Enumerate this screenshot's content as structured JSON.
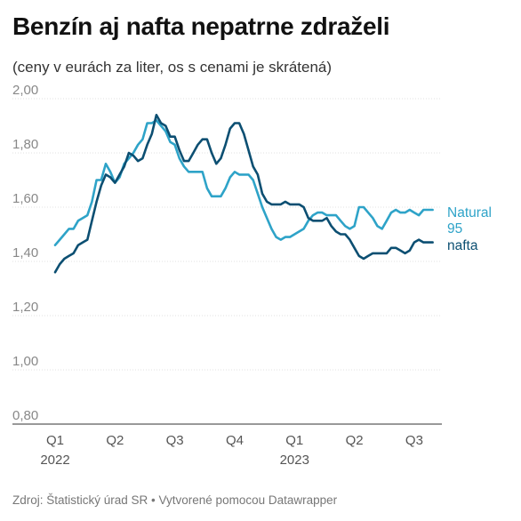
{
  "title": "Benzín aj nafta nepatrne zdraželi",
  "subtitle": "(ceny v eurách za liter, os s cenami je skrátená)",
  "footer": "Zdroj: Štatistický úrad SR • Vytvorené pomocou Datawrapper",
  "colors": {
    "natural95": "#2ea3c8",
    "nafta": "#0c4f72",
    "grid": "#e2e2e2"
  },
  "chart_data": {
    "type": "line",
    "title": "Benzín aj nafta nepatrne zdraželi",
    "subtitle": "(ceny v eurách za liter, os s cenami je skrátená)",
    "ylim": [
      0.8,
      2.0
    ],
    "y_ticks": [
      "2,00",
      "1,80",
      "1,60",
      "1,40",
      "1,20",
      "1,00",
      "0,80"
    ],
    "y_tick_values": [
      2.0,
      1.8,
      1.6,
      1.4,
      1.2,
      1.0,
      0.8
    ],
    "x_ticks": [
      {
        "label": "Q1",
        "year": "2022",
        "week": 0
      },
      {
        "label": "Q2",
        "year": "",
        "week": 13
      },
      {
        "label": "Q3",
        "year": "",
        "week": 26
      },
      {
        "label": "Q4",
        "year": "",
        "week": 39
      },
      {
        "label": "Q1",
        "year": "2023",
        "week": 52
      },
      {
        "label": "Q2",
        "year": "",
        "week": 65
      },
      {
        "label": "Q3",
        "year": "",
        "week": 78
      }
    ],
    "xlim": [
      0,
      84
    ],
    "grid": true,
    "series": [
      {
        "name": "Natural 95",
        "label_lines": [
          "Natural",
          "95"
        ],
        "color": "#2ea3c8",
        "x": [
          0,
          1,
          2,
          3,
          4,
          5,
          6,
          7,
          8,
          9,
          10,
          11,
          12,
          13,
          14,
          15,
          16,
          17,
          18,
          19,
          20,
          21,
          22,
          23,
          24,
          25,
          26,
          27,
          28,
          29,
          30,
          31,
          32,
          33,
          34,
          35,
          36,
          37,
          38,
          39,
          40,
          41,
          42,
          43,
          44,
          45,
          46,
          47,
          48,
          49,
          50,
          51,
          52,
          53,
          54,
          55,
          56,
          57,
          58,
          59,
          60,
          61,
          62,
          63,
          64,
          65,
          66,
          67,
          68,
          69,
          70,
          71,
          72,
          73,
          74,
          75,
          76,
          77,
          78,
          79,
          80,
          81,
          82
        ],
        "values": [
          1.46,
          1.48,
          1.5,
          1.52,
          1.52,
          1.55,
          1.56,
          1.57,
          1.62,
          1.7,
          1.7,
          1.76,
          1.73,
          1.69,
          1.71,
          1.76,
          1.78,
          1.8,
          1.83,
          1.85,
          1.91,
          1.91,
          1.92,
          1.9,
          1.88,
          1.84,
          1.83,
          1.78,
          1.75,
          1.73,
          1.73,
          1.73,
          1.73,
          1.67,
          1.64,
          1.64,
          1.64,
          1.67,
          1.71,
          1.73,
          1.72,
          1.72,
          1.72,
          1.7,
          1.65,
          1.6,
          1.56,
          1.52,
          1.49,
          1.48,
          1.49,
          1.49,
          1.5,
          1.51,
          1.52,
          1.55,
          1.57,
          1.58,
          1.58,
          1.57,
          1.57,
          1.57,
          1.55,
          1.53,
          1.52,
          1.53,
          1.6,
          1.6,
          1.58,
          1.56,
          1.53,
          1.52,
          1.55,
          1.58,
          1.59,
          1.58,
          1.58,
          1.59,
          1.58,
          1.57,
          1.59,
          1.59,
          1.59
        ]
      },
      {
        "name": "nafta",
        "label_lines": [
          "nafta"
        ],
        "color": "#0c4f72",
        "x": [
          0,
          1,
          2,
          3,
          4,
          5,
          6,
          7,
          8,
          9,
          10,
          11,
          12,
          13,
          14,
          15,
          16,
          17,
          18,
          19,
          20,
          21,
          22,
          23,
          24,
          25,
          26,
          27,
          28,
          29,
          30,
          31,
          32,
          33,
          34,
          35,
          36,
          37,
          38,
          39,
          40,
          41,
          42,
          43,
          44,
          45,
          46,
          47,
          48,
          49,
          50,
          51,
          52,
          53,
          54,
          55,
          56,
          57,
          58,
          59,
          60,
          61,
          62,
          63,
          64,
          65,
          66,
          67,
          68,
          69,
          70,
          71,
          72,
          73,
          74,
          75,
          76,
          77,
          78,
          79,
          80,
          81,
          82
        ],
        "values": [
          1.36,
          1.39,
          1.41,
          1.42,
          1.43,
          1.46,
          1.47,
          1.48,
          1.55,
          1.62,
          1.68,
          1.72,
          1.71,
          1.69,
          1.72,
          1.75,
          1.8,
          1.79,
          1.77,
          1.78,
          1.83,
          1.87,
          1.94,
          1.91,
          1.9,
          1.86,
          1.86,
          1.81,
          1.77,
          1.77,
          1.8,
          1.83,
          1.85,
          1.85,
          1.8,
          1.76,
          1.78,
          1.83,
          1.89,
          1.91,
          1.91,
          1.87,
          1.81,
          1.75,
          1.72,
          1.65,
          1.62,
          1.61,
          1.61,
          1.61,
          1.62,
          1.61,
          1.61,
          1.61,
          1.6,
          1.56,
          1.55,
          1.55,
          1.55,
          1.56,
          1.53,
          1.51,
          1.5,
          1.5,
          1.48,
          1.45,
          1.42,
          1.41,
          1.42,
          1.43,
          1.43,
          1.43,
          1.43,
          1.45,
          1.45,
          1.44,
          1.43,
          1.44,
          1.47,
          1.48,
          1.47,
          1.47,
          1.47
        ]
      }
    ]
  }
}
